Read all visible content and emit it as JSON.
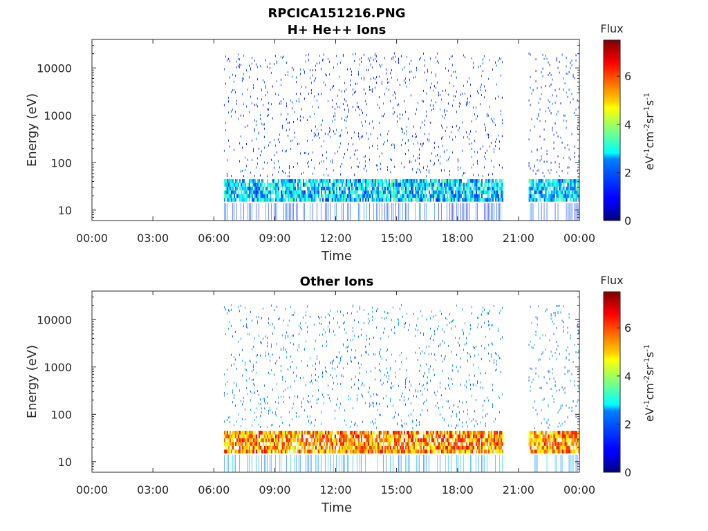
{
  "figure": {
    "title_line1": "RPCICA151216.PNG",
    "title_line2": "H+ He++ Ions"
  },
  "chart_data": [
    {
      "type": "heatmap",
      "title": "H+ He++ Ions",
      "xlabel": "Time",
      "ylabel": "Energy (eV)",
      "x_ticks": [
        "00:00",
        "03:00",
        "06:00",
        "09:00",
        "12:00",
        "15:00",
        "18:00",
        "21:00",
        "00:00"
      ],
      "x_range_hours": [
        0,
        24
      ],
      "y_scale": "log",
      "y_ticks": [
        10,
        100,
        1000,
        10000
      ],
      "y_tick_labels": [
        "10",
        "100",
        "1000",
        "10000"
      ],
      "y_range": [
        6,
        40000
      ],
      "data_coverage_hours": [
        [
          6.5,
          20.2
        ],
        [
          21.5,
          24.0
        ]
      ],
      "dominant_band_eV": [
        15,
        45
      ],
      "colorbar": {
        "title": "Flux",
        "label": "eV-1cm-2sr-1s-1",
        "range": [
          0,
          7.5
        ],
        "ticks": [
          0,
          2,
          4,
          6
        ],
        "colormap": "jet"
      },
      "band_level": 2.5,
      "sparse_level": 1.0
    },
    {
      "type": "heatmap",
      "title": "Other Ions",
      "xlabel": "Time",
      "ylabel": "Energy (eV)",
      "x_ticks": [
        "00:00",
        "03:00",
        "06:00",
        "09:00",
        "12:00",
        "15:00",
        "18:00",
        "21:00",
        "00:00"
      ],
      "x_range_hours": [
        0,
        24
      ],
      "y_scale": "log",
      "y_ticks": [
        10,
        100,
        1000,
        10000
      ],
      "y_tick_labels": [
        "10",
        "100",
        "1000",
        "10000"
      ],
      "y_range": [
        6,
        40000
      ],
      "data_coverage_hours": [
        [
          6.5,
          20.2
        ],
        [
          21.5,
          24.0
        ]
      ],
      "dominant_band_eV": [
        15,
        45
      ],
      "colorbar": {
        "title": "Flux",
        "label": "eV-1cm-2sr-1s-1",
        "range": [
          0,
          7.5
        ],
        "ticks": [
          0,
          2,
          4,
          6
        ],
        "colormap": "jet"
      },
      "band_level": 5.5,
      "sparse_level": 1.5
    }
  ]
}
